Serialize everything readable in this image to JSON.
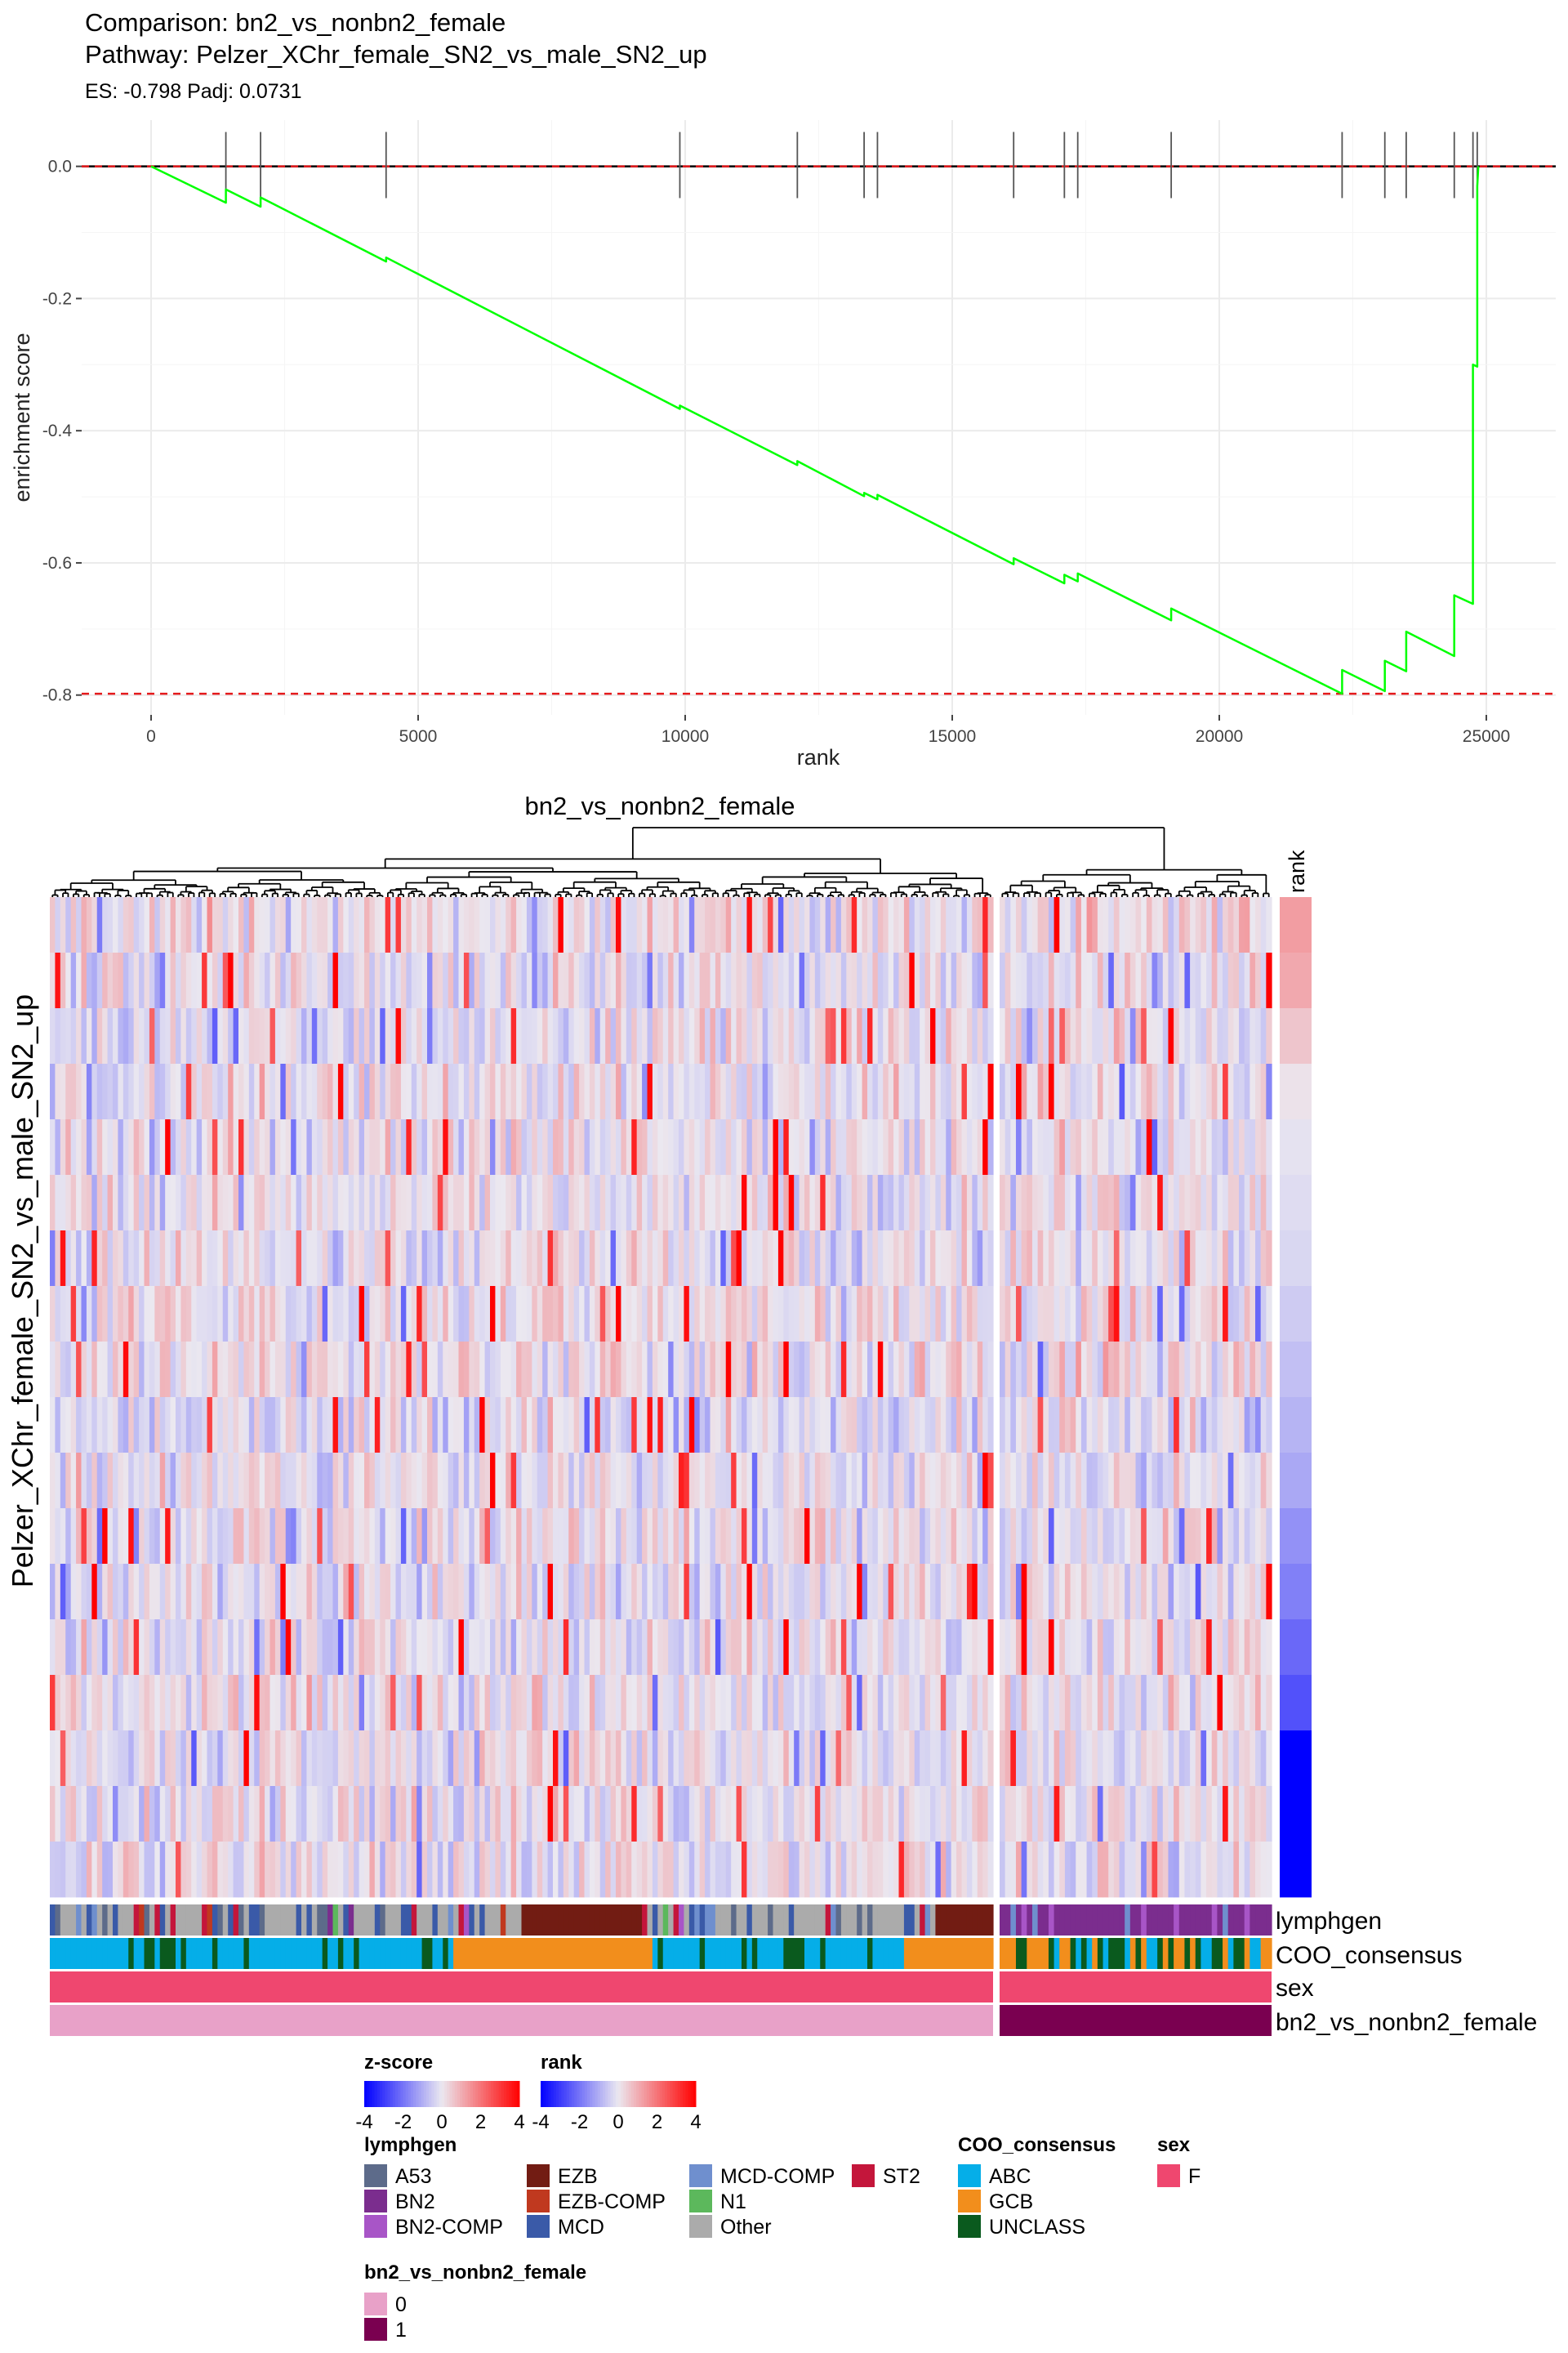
{
  "chart_data": [
    {
      "type": "line",
      "title": "Comparison: bn2_vs_nonbn2_female",
      "subtitle": "Pathway: Pelzer_XChr_female_SN2_vs_male_SN2_up",
      "caption": "ES: -0.798 Padj: 0.0731",
      "xlabel": "rank",
      "ylabel": "enrichment score",
      "xlim": [
        -1300,
        26300
      ],
      "ylim": [
        -0.83,
        0.07
      ],
      "x_ticks": [
        0,
        5000,
        10000,
        15000,
        20000,
        25000
      ],
      "x_tick_labels": [
        "0",
        "5000",
        "10000",
        "15000",
        "20000",
        "25000"
      ],
      "y_ticks": [
        0.0,
        -0.2,
        -0.4,
        -0.6,
        -0.8
      ],
      "y_tick_labels": [
        "0.0",
        "-0.2",
        "-0.4",
        "-0.6",
        "-0.8"
      ],
      "hlines": [
        {
          "y": 0.0,
          "color": "#000000",
          "style": "solid"
        },
        {
          "y": 0.0,
          "color": "#e41a1c",
          "style": "dashed"
        },
        {
          "y": -0.798,
          "color": "#e41a1c",
          "style": "dashed"
        }
      ],
      "grid": true,
      "hit_ranks": [
        1400,
        2050,
        4400,
        9900,
        12100,
        13350,
        13600,
        16150,
        17100,
        17350,
        19100,
        22300,
        23100,
        23500,
        24400,
        24750,
        24830
      ],
      "series": [
        {
          "color": "#00ff00",
          "points": [
            [
              0,
              0.0
            ],
            [
              1400,
              -0.055
            ],
            [
              1400,
              -0.035
            ],
            [
              2050,
              -0.061
            ],
            [
              2050,
              -0.047
            ],
            [
              4400,
              -0.144
            ],
            [
              4400,
              -0.138
            ],
            [
              9900,
              -0.367
            ],
            [
              9900,
              -0.362
            ],
            [
              12100,
              -0.452
            ],
            [
              12100,
              -0.446
            ],
            [
              13350,
              -0.499
            ],
            [
              13350,
              -0.494
            ],
            [
              13600,
              -0.504
            ],
            [
              13600,
              -0.497
            ],
            [
              16150,
              -0.602
            ],
            [
              16150,
              -0.593
            ],
            [
              17100,
              -0.631
            ],
            [
              17100,
              -0.618
            ],
            [
              17350,
              -0.628
            ],
            [
              17350,
              -0.616
            ],
            [
              19100,
              -0.687
            ],
            [
              19100,
              -0.669
            ],
            [
              22300,
              -0.798
            ],
            [
              22300,
              -0.762
            ],
            [
              23100,
              -0.794
            ],
            [
              23100,
              -0.748
            ],
            [
              23500,
              -0.764
            ],
            [
              23500,
              -0.704
            ],
            [
              24400,
              -0.741
            ],
            [
              24400,
              -0.649
            ],
            [
              24750,
              -0.662
            ],
            [
              24750,
              -0.48
            ],
            [
              24750,
              -0.3
            ],
            [
              24830,
              -0.303
            ],
            [
              24830,
              -0.03
            ],
            [
              24850,
              0.0
            ]
          ]
        }
      ]
    },
    {
      "type": "heatmap",
      "title": "bn2_vs_nonbn2_female",
      "ylabel": "Pelzer_XChr_female_SN2_vs_male_SN2_up",
      "n_rows": 18,
      "n_cols_group0": 180,
      "n_cols_group1": 50,
      "column_split": [
        0,
        1
      ],
      "rank_column_label": "rank",
      "rank_values": [
        1.3,
        1.1,
        0.6,
        0.1,
        -0.1,
        -0.2,
        -0.3,
        -0.5,
        -0.7,
        -0.9,
        -1.1,
        -1.5,
        -1.8,
        -2.2,
        -2.6,
        -4.0,
        -4.0,
        -4.0
      ],
      "row_mean_zscore": [
        0.1,
        0.0,
        0.0,
        0.05,
        0.0,
        0.0,
        0.0,
        0.1,
        0.1,
        -0.1,
        0.0,
        0.0,
        -0.05,
        0.0,
        0.0,
        0.0,
        0.0,
        0.0
      ],
      "annotation_tracks": [
        "lymphgen",
        "COO_consensus",
        "sex",
        "bn2_vs_nonbn2_female"
      ],
      "lymphgen_counts_group0": {
        "A53": 14,
        "BN2": 2,
        "BN2-COMP": 2,
        "EZB": 34,
        "EZB-COMP": 3,
        "MCD": 24,
        "MCD-COMP": 8,
        "N1": 2,
        "Other": 80,
        "ST2": 11
      },
      "lymphgen_counts_group1": {
        "BN2": 40,
        "BN2-COMP": 6,
        "MCD-COMP": 4
      },
      "coo_counts_group0": {
        "ABC": 100,
        "GCB": 55,
        "UNCLASS": 25
      },
      "coo_counts_group1": {
        "ABC": 12,
        "GCB": 20,
        "UNCLASS": 18
      },
      "legends": {
        "zscore": {
          "title": "z-score",
          "ticks": [
            "-4",
            "-2",
            "0",
            "2",
            "4"
          ]
        },
        "rank": {
          "title": "rank",
          "ticks": [
            "-4",
            "-2",
            "0",
            "2",
            "4"
          ]
        },
        "lymphgen": {
          "title": "lymphgen",
          "items": [
            {
              "label": "A53",
              "color": "#5d6b8a"
            },
            {
              "label": "BN2",
              "color": "#7b2d8e"
            },
            {
              "label": "BN2-COMP",
              "color": "#a855c7"
            },
            {
              "label": "EZB",
              "color": "#721c13"
            },
            {
              "label": "EZB-COMP",
              "color": "#c0391f"
            },
            {
              "label": "MCD",
              "color": "#3a5aa8"
            },
            {
              "label": "MCD-COMP",
              "color": "#6f8fce"
            },
            {
              "label": "N1",
              "color": "#5cb85c"
            },
            {
              "label": "Other",
              "color": "#ababab"
            },
            {
              "label": "ST2",
              "color": "#c4163b"
            }
          ]
        },
        "coo": {
          "title": "COO_consensus",
          "items": [
            {
              "label": "ABC",
              "color": "#05aee8"
            },
            {
              "label": "GCB",
              "color": "#f28e1c"
            },
            {
              "label": "UNCLASS",
              "color": "#0a5a1e"
            }
          ]
        },
        "sex": {
          "title": "sex",
          "items": [
            {
              "label": "F",
              "color": "#ef476f"
            }
          ]
        },
        "group": {
          "title": "bn2_vs_nonbn2_female",
          "items": [
            {
              "label": "0",
              "color": "#e8a1c8"
            },
            {
              "label": "1",
              "color": "#7a0050"
            }
          ]
        }
      }
    }
  ]
}
